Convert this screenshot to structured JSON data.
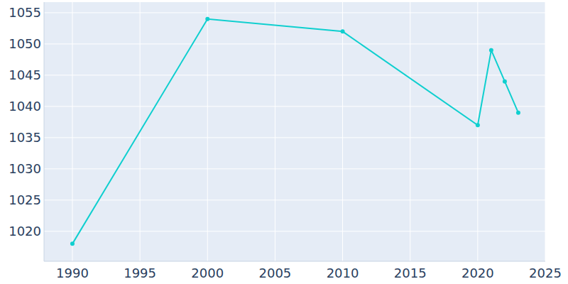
{
  "chart_data": {
    "type": "line",
    "x": [
      1990,
      2000,
      2010,
      2020,
      2021,
      2022,
      2023
    ],
    "series": [
      {
        "color": "#0fcfcf",
        "marker": "circle",
        "values": [
          1018,
          1054,
          1052,
          1037,
          1049,
          1044,
          1039
        ]
      }
    ],
    "xlim": [
      1987.9,
      2025
    ],
    "xticks": [
      1990,
      1995,
      2000,
      2005,
      2010,
      2015,
      2020,
      2025
    ],
    "ylim": [
      1015.2,
      1056.7
    ],
    "yticks": [
      1020,
      1025,
      1030,
      1035,
      1040,
      1045,
      1050,
      1055
    ],
    "grid": true
  }
}
